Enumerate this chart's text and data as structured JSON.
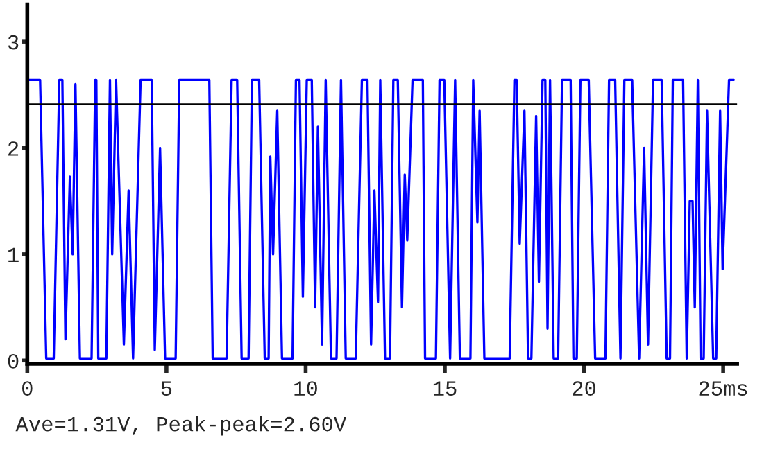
{
  "chart_data": {
    "type": "line",
    "x": [
      0.01,
      0.46,
      0.68,
      0.95,
      1.15,
      1.26,
      1.37,
      1.53,
      1.63,
      1.73,
      1.89,
      2.31,
      2.44,
      2.48,
      2.55,
      2.84,
      2.97,
      3.05,
      3.19,
      3.47,
      3.64,
      3.8,
      4.07,
      4.47,
      4.58,
      4.77,
      4.95,
      5.33,
      5.46,
      6.54,
      6.66,
      7.16,
      7.34,
      7.54,
      7.7,
      7.95,
      8.07,
      8.33,
      8.53,
      8.67,
      8.73,
      8.83,
      8.98,
      9.15,
      9.53,
      9.65,
      9.78,
      9.9,
      10.04,
      10.22,
      10.34,
      10.44,
      10.59,
      10.72,
      10.91,
      11.11,
      11.27,
      11.44,
      11.8,
      12.02,
      12.22,
      12.35,
      12.47,
      12.6,
      12.68,
      12.85,
      13.03,
      13.15,
      13.31,
      13.46,
      13.56,
      13.65,
      13.84,
      14.21,
      14.29,
      14.68,
      14.81,
      14.98,
      15.19,
      15.37,
      15.54,
      15.92,
      16.02,
      16.17,
      16.25,
      16.42,
      17.33,
      17.5,
      17.58,
      17.69,
      17.86,
      17.99,
      18.11,
      18.28,
      18.38,
      18.51,
      18.61,
      18.69,
      18.78,
      18.91,
      19.07,
      19.21,
      19.52,
      19.62,
      19.74,
      19.87,
      20.17,
      20.4,
      20.77,
      20.9,
      21.12,
      21.31,
      21.45,
      21.73,
      21.98,
      22.16,
      22.3,
      22.48,
      22.79,
      22.97,
      23.09,
      23.19,
      23.56,
      23.69,
      23.8,
      23.9,
      23.98,
      24.09,
      24.19,
      24.3,
      24.42,
      24.64,
      24.75,
      24.89,
      24.98,
      25.21,
      25.38
    ],
    "series": [
      {
        "color": "#0000ff",
        "values": [
          2.64,
          2.64,
          0.02,
          0.02,
          2.64,
          2.64,
          0.2,
          1.73,
          1.0,
          2.6,
          0.02,
          0.02,
          2.64,
          2.64,
          0.02,
          0.02,
          2.64,
          1.0,
          2.64,
          0.15,
          1.6,
          0.02,
          2.64,
          2.64,
          0.1,
          2.0,
          0.02,
          0.02,
          2.64,
          2.64,
          0.02,
          0.02,
          2.64,
          2.64,
          0.02,
          0.02,
          2.64,
          2.64,
          0.02,
          0.02,
          1.92,
          1.0,
          2.35,
          0.02,
          0.02,
          2.64,
          2.64,
          0.6,
          2.64,
          2.64,
          0.5,
          2.2,
          0.15,
          2.64,
          0.02,
          0.02,
          2.64,
          0.02,
          0.02,
          2.64,
          2.64,
          0.15,
          1.6,
          0.55,
          2.64,
          0.02,
          0.02,
          2.64,
          2.64,
          0.5,
          1.75,
          1.13,
          2.64,
          2.64,
          0.02,
          0.02,
          2.64,
          2.64,
          0.02,
          2.64,
          0.02,
          0.02,
          2.64,
          1.3,
          2.35,
          0.02,
          0.02,
          2.64,
          2.64,
          1.1,
          2.35,
          0.02,
          0.02,
          2.3,
          0.74,
          2.64,
          2.64,
          0.3,
          2.64,
          0.02,
          0.02,
          2.64,
          2.64,
          0.02,
          0.02,
          2.64,
          2.64,
          0.02,
          0.02,
          2.64,
          2.64,
          0.02,
          2.64,
          2.64,
          0.02,
          2.0,
          0.15,
          2.64,
          2.64,
          0.02,
          0.02,
          2.64,
          2.64,
          0.02,
          1.5,
          1.5,
          0.5,
          2.64,
          0.02,
          0.02,
          2.35,
          0.02,
          0.02,
          2.35,
          0.86,
          2.64,
          2.64
        ]
      }
    ],
    "xlim": [
      0,
      25.5
    ],
    "ylim": [
      -0.03,
      3.35
    ],
    "xticks": [
      0,
      5,
      10,
      15,
      20,
      {
        "value": 25,
        "label": "25ms"
      }
    ],
    "yticks": [
      0,
      1,
      2,
      3
    ],
    "ref_lines": [
      {
        "axis": "y",
        "value": 2.41,
        "color": "#000000"
      }
    ],
    "annotations": [
      "Ave=1.31V, Peak-peak=2.60V"
    ],
    "grid": false,
    "legend": false,
    "marker": "none",
    "line_style": "solid"
  }
}
